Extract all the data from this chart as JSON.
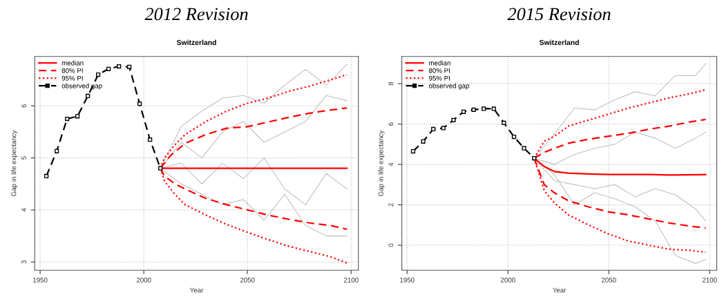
{
  "chart_data": [
    {
      "type": "line",
      "title": "2012 Revision",
      "subtitle": "Switzerland",
      "xlabel": "Year",
      "ylabel": "Gap in life expectancy",
      "xlim": [
        1947.4,
        2103.5
      ],
      "ylim": [
        2.84,
        6.95
      ],
      "xticks": [
        1950,
        2000,
        2050,
        2100
      ],
      "yticks": [
        3,
        4,
        5,
        6
      ],
      "grid": true,
      "legend": "top left",
      "series": [
        {
          "color": "#c0c0c0",
          "x": [
            2008,
            2018,
            2028,
            2038,
            2048,
            2058,
            2068,
            2078,
            2088,
            2098
          ],
          "values": [
            4.8,
            5.6,
            5.9,
            6.15,
            6.2,
            6.05,
            6.4,
            6.7,
            6.4,
            6.8
          ]
        },
        {
          "color": "#c0c0c0",
          "x": [
            2008,
            2018,
            2028,
            2038,
            2048,
            2058,
            2068,
            2078,
            2088,
            2098
          ],
          "values": [
            4.8,
            4.9,
            4.5,
            4.9,
            4.6,
            5.0,
            4.4,
            4.1,
            4.7,
            4.4
          ]
        },
        {
          "color": "#c0c0c0",
          "x": [
            2008,
            2018,
            2028,
            2038,
            2048,
            2058,
            2068,
            2078,
            2088,
            2098
          ],
          "values": [
            4.8,
            4.5,
            4.3,
            4.1,
            4.2,
            3.8,
            4.3,
            3.7,
            3.5,
            3.5
          ]
        },
        {
          "color": "#c0c0c0",
          "x": [
            2008,
            2018,
            2028,
            2038,
            2048,
            2058,
            2068,
            2078,
            2088,
            2098
          ],
          "values": [
            4.8,
            5.3,
            5.0,
            5.5,
            5.7,
            5.3,
            5.5,
            5.7,
            6.2,
            6.1
          ]
        },
        {
          "name": "median",
          "color": "#ff0000",
          "line_style": "solid",
          "x": [
            2008,
            2098
          ],
          "values": [
            4.8,
            4.8
          ]
        },
        {
          "name": "80% PI",
          "color": "#ff0000",
          "line_style": "dashed",
          "x": [
            2008,
            2013,
            2020,
            2030,
            2040,
            2050,
            2060,
            2070,
            2080,
            2090,
            2098
          ],
          "values": [
            4.8,
            5.05,
            5.28,
            5.45,
            5.57,
            5.6,
            5.69,
            5.78,
            5.86,
            5.92,
            5.96
          ]
        },
        {
          "color": "#ff0000",
          "line_style": "dashed",
          "x": [
            2008,
            2010,
            2015,
            2020,
            2030,
            2040,
            2050,
            2060,
            2070,
            2080,
            2090,
            2098
          ],
          "values": [
            4.8,
            4.65,
            4.5,
            4.4,
            4.22,
            4.1,
            4.0,
            3.9,
            3.82,
            3.75,
            3.7,
            3.63
          ]
        },
        {
          "name": "95% PI",
          "color": "#ff0000",
          "line_style": "dotted",
          "x": [
            2008,
            2010,
            2015,
            2020,
            2030,
            2040,
            2050,
            2060,
            2070,
            2080,
            2090,
            2098
          ],
          "values": [
            4.8,
            5.0,
            5.25,
            5.45,
            5.7,
            5.9,
            6.05,
            6.15,
            6.28,
            6.38,
            6.5,
            6.6
          ]
        },
        {
          "color": "#ff0000",
          "line_style": "dotted",
          "x": [
            2008,
            2010,
            2015,
            2020,
            2030,
            2040,
            2050,
            2060,
            2070,
            2080,
            2090,
            2098
          ],
          "values": [
            4.8,
            4.55,
            4.3,
            4.1,
            3.9,
            3.72,
            3.57,
            3.43,
            3.3,
            3.2,
            3.1,
            2.98
          ]
        },
        {
          "name": "observed gap",
          "color": "#000000",
          "line_style": "dashed",
          "marker": "square",
          "x": [
            1953,
            1958,
            1963,
            1968,
            1973,
            1978,
            1983,
            1988,
            1993,
            1998,
            2003,
            2008
          ],
          "values": [
            4.65,
            5.13,
            5.75,
            5.8,
            6.19,
            6.6,
            6.71,
            6.76,
            6.75,
            6.04,
            5.35,
            4.8
          ]
        }
      ]
    },
    {
      "type": "line",
      "title": "2015 Revision",
      "subtitle": "Switzerland",
      "xlabel": "Year",
      "ylabel": "Gap in life expectancy",
      "xlim": [
        1947.4,
        2103.5
      ],
      "ylim": [
        -1.24,
        9.35
      ],
      "xticks": [
        1950,
        2000,
        2050,
        2100
      ],
      "yticks": [
        0,
        2,
        4,
        6,
        8
      ],
      "grid": true,
      "legend": "top left",
      "series": [
        {
          "color": "#c0c0c0",
          "x": [
            2013,
            2023,
            2033,
            2043,
            2053,
            2063,
            2073,
            2083,
            2093,
            2098
          ],
          "values": [
            4.31,
            5.5,
            6.8,
            6.7,
            7.2,
            7.6,
            7.4,
            8.4,
            8.4,
            9.0
          ]
        },
        {
          "color": "#c0c0c0",
          "x": [
            2013,
            2023,
            2033,
            2043,
            2053,
            2063,
            2073,
            2083,
            2093,
            2098
          ],
          "values": [
            4.31,
            3.5,
            2.0,
            2.6,
            2.3,
            1.9,
            1.2,
            -0.5,
            -0.9,
            -0.7
          ]
        },
        {
          "color": "#c0c0c0",
          "x": [
            2013,
            2023,
            2033,
            2043,
            2053,
            2063,
            2073,
            2083,
            2093,
            2098
          ],
          "values": [
            4.31,
            4.0,
            4.5,
            4.8,
            5.0,
            5.6,
            5.3,
            4.8,
            5.3,
            5.6
          ]
        },
        {
          "color": "#c0c0c0",
          "x": [
            2013,
            2023,
            2033,
            2043,
            2053,
            2063,
            2073,
            2083,
            2093,
            2098
          ],
          "values": [
            4.31,
            3.2,
            3.0,
            2.8,
            3.0,
            2.4,
            2.8,
            2.5,
            1.8,
            1.2
          ]
        },
        {
          "name": "median",
          "color": "#ff0000",
          "line_style": "solid",
          "x": [
            2013,
            2018,
            2023,
            2030,
            2040,
            2050,
            2070,
            2080,
            2098
          ],
          "values": [
            4.31,
            3.9,
            3.65,
            3.57,
            3.53,
            3.5,
            3.5,
            3.48,
            3.5
          ]
        },
        {
          "name": "80% PI",
          "color": "#ff0000",
          "line_style": "dashed",
          "x": [
            2013,
            2018,
            2023,
            2030,
            2040,
            2050,
            2060,
            2070,
            2080,
            2090,
            2098
          ],
          "values": [
            4.31,
            4.6,
            4.8,
            5.05,
            5.25,
            5.4,
            5.55,
            5.75,
            5.9,
            6.1,
            6.23
          ]
        },
        {
          "color": "#ff0000",
          "line_style": "dashed",
          "x": [
            2013,
            2018,
            2023,
            2030,
            2040,
            2050,
            2060,
            2070,
            2080,
            2090,
            2098
          ],
          "values": [
            4.31,
            3.0,
            2.6,
            2.2,
            1.9,
            1.65,
            1.5,
            1.3,
            1.1,
            0.95,
            0.85
          ]
        },
        {
          "name": "95% PI",
          "color": "#ff0000",
          "line_style": "dotted",
          "x": [
            2013,
            2018,
            2023,
            2030,
            2040,
            2050,
            2060,
            2070,
            2080,
            2090,
            2098
          ],
          "values": [
            4.31,
            5.15,
            5.4,
            5.9,
            6.2,
            6.5,
            6.8,
            7.05,
            7.3,
            7.5,
            7.7
          ]
        },
        {
          "color": "#ff0000",
          "line_style": "dotted",
          "x": [
            2013,
            2018,
            2023,
            2030,
            2040,
            2050,
            2060,
            2070,
            2080,
            2090,
            2098
          ],
          "values": [
            4.31,
            2.7,
            2.1,
            1.5,
            1.0,
            0.55,
            0.2,
            0.0,
            -0.2,
            -0.25,
            -0.35
          ]
        },
        {
          "name": "observed gap",
          "color": "#000000",
          "line_style": "dashed",
          "marker": "square",
          "x": [
            1953,
            1958,
            1963,
            1968,
            1973,
            1978,
            1983,
            1988,
            1993,
            1998,
            2003,
            2008,
            2013
          ],
          "values": [
            4.65,
            5.14,
            5.75,
            5.8,
            6.2,
            6.61,
            6.71,
            6.76,
            6.76,
            6.06,
            5.37,
            4.8,
            4.31
          ]
        }
      ]
    }
  ]
}
